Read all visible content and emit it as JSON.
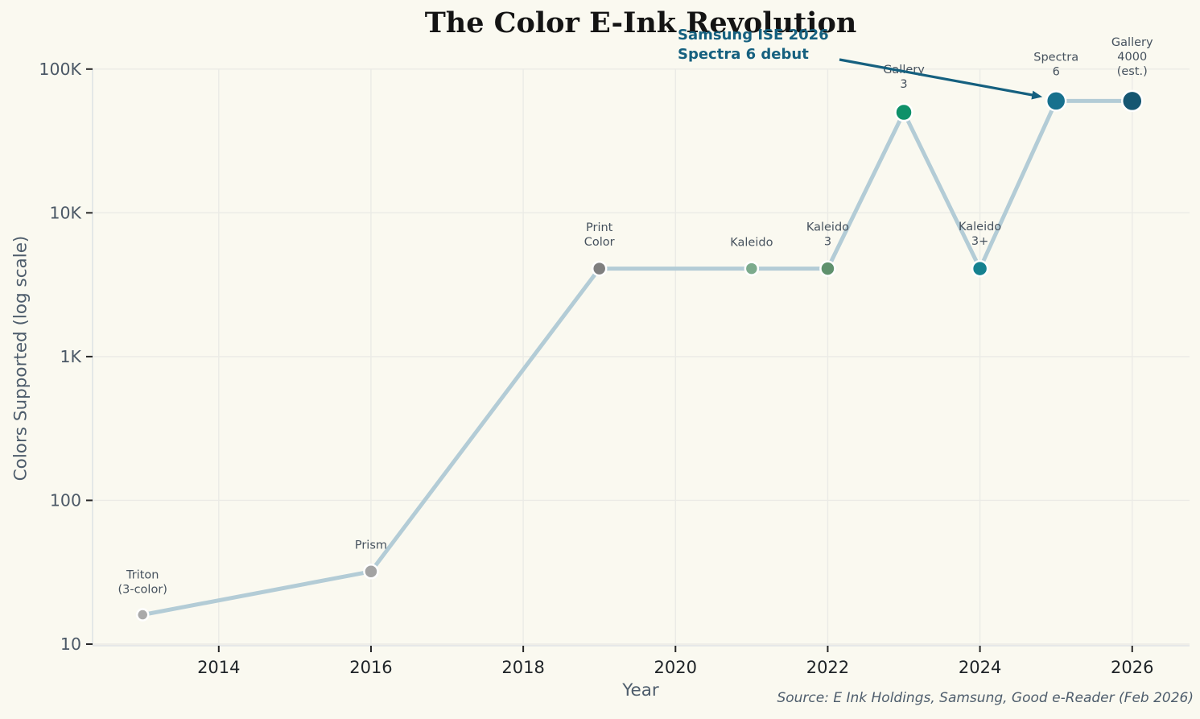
{
  "source": "Source: E Ink Holdings, Samsung, Good e-Reader (Feb 2026)",
  "chart_data": {
    "type": "line",
    "title": "The Color E-Ink Revolution",
    "xlabel": "Year",
    "ylabel": "Colors Supported (log scale)",
    "y_scale": "log",
    "grid": true,
    "x_ticks": [
      "2014",
      "2016",
      "2018",
      "2020",
      "2022",
      "2024",
      "2026"
    ],
    "x_tick_years": [
      2014,
      2016,
      2018,
      2020,
      2022,
      2024,
      2026
    ],
    "y_ticks": [
      {
        "label": "10",
        "value": 10
      },
      {
        "label": "100",
        "value": 100
      },
      {
        "label": "1K",
        "value": 1000
      },
      {
        "label": "10K",
        "value": 10000
      },
      {
        "label": "100K",
        "value": 100000
      }
    ],
    "ylim": [
      10,
      105000
    ],
    "line_color": "#b3ccd6",
    "points": [
      {
        "label": "Triton (3-color)",
        "label_lines": [
          "Triton",
          "(3-color)"
        ],
        "year": 2013,
        "colors_supported": 16,
        "color": "#a9a9a9",
        "size": 7
      },
      {
        "label": "Prism",
        "label_lines": [
          "Prism"
        ],
        "year": 2016,
        "colors_supported": 32,
        "color": "#a3a3a3",
        "size": 8.5
      },
      {
        "label": "Print Color",
        "label_lines": [
          "Print",
          "Color"
        ],
        "year": 2019,
        "colors_supported": 4096,
        "color": "#7f7f7f",
        "size": 8.5
      },
      {
        "label": "Kaleido",
        "label_lines": [
          "Kaleido"
        ],
        "year": 2021,
        "colors_supported": 4096,
        "color": "#7cab8c",
        "size": 8
      },
      {
        "label": "Kaleido 3",
        "label_lines": [
          "Kaleido",
          "3"
        ],
        "year": 2022,
        "colors_supported": 4096,
        "color": "#5f916d",
        "size": 9
      },
      {
        "label": "Gallery 3",
        "label_lines": [
          "Gallery",
          "3"
        ],
        "year": 2023,
        "colors_supported": 50000,
        "color": "#0f9169",
        "size": 10.5
      },
      {
        "label": "Kaleido 3+",
        "label_lines": [
          "Kaleido",
          "3+"
        ],
        "year": 2024,
        "colors_supported": 4096,
        "color": "#15818f",
        "size": 9.5
      },
      {
        "label": "Spectra 6",
        "label_lines": [
          "Spectra",
          "6"
        ],
        "year": 2025,
        "colors_supported": 60000,
        "color": "#17718e",
        "size": 12
      },
      {
        "label": "Gallery 4000 (est.)",
        "label_lines": [
          "Gallery",
          "4000",
          "(est.)"
        ],
        "year": 2026,
        "colors_supported": 60000,
        "color": "#155671",
        "size": 12.5
      }
    ],
    "annotation": {
      "lines": [
        "Samsung ISE 2026",
        "Spectra 6 debut"
      ],
      "color": "#15607f",
      "target_label": "Spectra 6",
      "target_year": 2025,
      "target_value": 60000
    },
    "colors": {
      "background": "#faf9f0",
      "gridline": "#ebebe6",
      "spine": "#dfe3e5",
      "tick_mark": "#262626",
      "x_tick_label": "#1f2428",
      "y_tick_label": "#4b5866",
      "point_label": "#46525e",
      "accent_annotation": "#15607f"
    }
  }
}
